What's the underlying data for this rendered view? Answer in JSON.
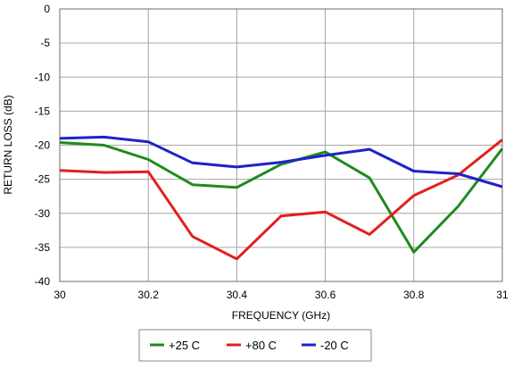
{
  "chart_data": {
    "type": "line",
    "title": "",
    "xlabel": "FREQUENCY (GHz)",
    "ylabel": "RETURN LOSS (dB)",
    "xlim": [
      30,
      31
    ],
    "ylim": [
      -40,
      0
    ],
    "x_ticks": [
      30,
      30.2,
      30.4,
      30.6,
      30.8,
      31
    ],
    "x_tick_labels": [
      "30",
      "30.2",
      "30.4",
      "30.6",
      "30.8",
      "31"
    ],
    "y_ticks": [
      0,
      -5,
      -10,
      -15,
      -20,
      -25,
      -30,
      -35,
      -40
    ],
    "y_tick_labels": [
      "0",
      "-5",
      "-10",
      "-15",
      "-20",
      "-25",
      "-30",
      "-35",
      "-40"
    ],
    "grid": true,
    "legend_position": "bottom",
    "x": [
      30,
      30.1,
      30.2,
      30.3,
      30.4,
      30.5,
      30.6,
      30.7,
      30.8,
      30.9,
      31
    ],
    "series": [
      {
        "name": "+25 C",
        "color": "#1e8b1e",
        "values": [
          -19.6,
          -20.0,
          -22.1,
          -25.8,
          -26.2,
          -22.8,
          -21.0,
          -24.8,
          -35.7,
          -29.0,
          -20.5
        ]
      },
      {
        "name": "+80 C",
        "color": "#e41e1e",
        "values": [
          -23.7,
          -24.0,
          -23.9,
          -33.4,
          -36.7,
          -30.4,
          -29.8,
          -33.1,
          -27.4,
          -24.4,
          -19.2
        ]
      },
      {
        "name": "-20 C",
        "color": "#1e22c8",
        "values": [
          -19.0,
          -18.8,
          -19.5,
          -22.6,
          -23.2,
          -22.5,
          -21.5,
          -20.6,
          -23.8,
          -24.2,
          -26.1
        ]
      }
    ]
  }
}
